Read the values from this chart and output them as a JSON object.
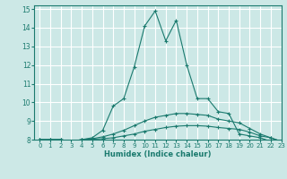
{
  "title": "",
  "xlabel": "Humidex (Indice chaleur)",
  "bg_color": "#cce8e6",
  "grid_color": "#ffffff",
  "line_color": "#1a7a6e",
  "tick_color": "#1a7a6e",
  "xlim": [
    -0.5,
    23
  ],
  "ylim": [
    8,
    15.2
  ],
  "yticks": [
    8,
    9,
    10,
    11,
    12,
    13,
    14,
    15
  ],
  "xticks": [
    0,
    1,
    2,
    3,
    4,
    5,
    6,
    7,
    8,
    9,
    10,
    11,
    12,
    13,
    14,
    15,
    16,
    17,
    18,
    19,
    20,
    21,
    22,
    23
  ],
  "series": [
    {
      "x": [
        0,
        1,
        2,
        3,
        4,
        5,
        6,
        7,
        8,
        9,
        10,
        11,
        12,
        13,
        14,
        15,
        16,
        17,
        18,
        19,
        20,
        21,
        22,
        23
      ],
      "y": [
        8.0,
        8.0,
        8.0,
        7.9,
        8.0,
        8.1,
        8.5,
        9.8,
        10.2,
        11.9,
        14.1,
        14.9,
        13.3,
        14.4,
        12.0,
        10.2,
        10.2,
        9.5,
        9.4,
        8.3,
        8.2,
        8.1,
        7.9,
        7.9
      ]
    },
    {
      "x": [
        0,
        1,
        2,
        3,
        4,
        5,
        6,
        7,
        8,
        9,
        10,
        11,
        12,
        13,
        14,
        15,
        16,
        17,
        18,
        19,
        20,
        21,
        22,
        23
      ],
      "y": [
        8.0,
        8.0,
        8.0,
        7.9,
        8.0,
        8.05,
        8.15,
        8.3,
        8.5,
        8.75,
        9.0,
        9.2,
        9.3,
        9.4,
        9.4,
        9.35,
        9.3,
        9.1,
        9.0,
        8.9,
        8.6,
        8.3,
        8.1,
        7.9
      ]
    },
    {
      "x": [
        0,
        1,
        2,
        3,
        4,
        5,
        6,
        7,
        8,
        9,
        10,
        11,
        12,
        13,
        14,
        15,
        16,
        17,
        18,
        19,
        20,
        21,
        22,
        23
      ],
      "y": [
        8.0,
        8.0,
        8.0,
        7.9,
        8.0,
        8.02,
        8.05,
        8.1,
        8.2,
        8.3,
        8.45,
        8.55,
        8.65,
        8.72,
        8.75,
        8.75,
        8.72,
        8.65,
        8.6,
        8.55,
        8.4,
        8.2,
        8.1,
        7.9
      ]
    }
  ]
}
